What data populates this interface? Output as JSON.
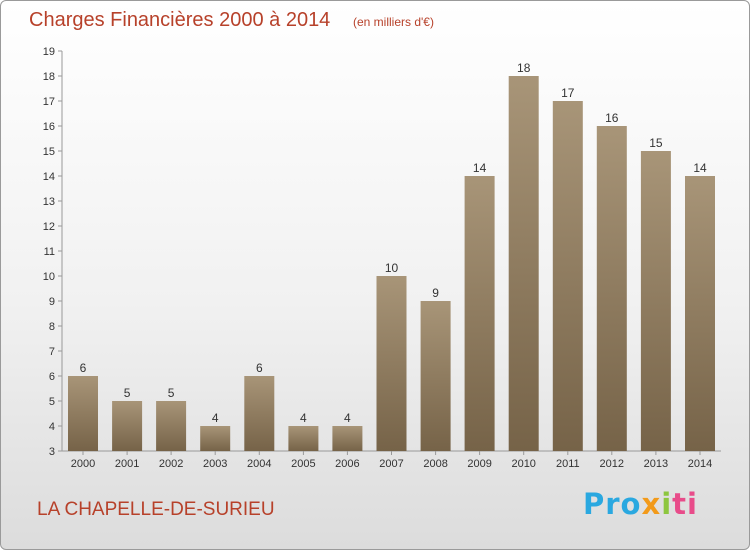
{
  "header": {
    "title": "Charges Financières 2000 à 2014",
    "subtitle": "(en milliers d'€)"
  },
  "footer": {
    "place": "LA CHAPELLE-DE-SURIEU",
    "logo": [
      "Pro",
      "x",
      "i",
      "ti"
    ]
  },
  "colors": {
    "title": "#b7412a",
    "bar_top": "#a89578",
    "bar_bottom": "#766348",
    "axis": "#999999"
  },
  "chart_data": {
    "type": "bar",
    "categories": [
      "2000",
      "2001",
      "2002",
      "2003",
      "2004",
      "2005",
      "2006",
      "2007",
      "2008",
      "2009",
      "2010",
      "2011",
      "2012",
      "2013",
      "2014"
    ],
    "values": [
      6,
      5,
      5,
      4,
      6,
      4,
      4,
      10,
      9,
      14,
      18,
      17,
      16,
      15,
      14
    ],
    "title": "Charges Financières 2000 à 2014",
    "subtitle": "(en milliers d'€)",
    "xlabel": "",
    "ylabel": "",
    "ylim": [
      3,
      19
    ],
    "yticks": [
      3,
      4,
      5,
      6,
      7,
      8,
      9,
      10,
      11,
      12,
      13,
      14,
      15,
      16,
      17,
      18,
      19
    ],
    "grid": false,
    "legend": "none"
  }
}
